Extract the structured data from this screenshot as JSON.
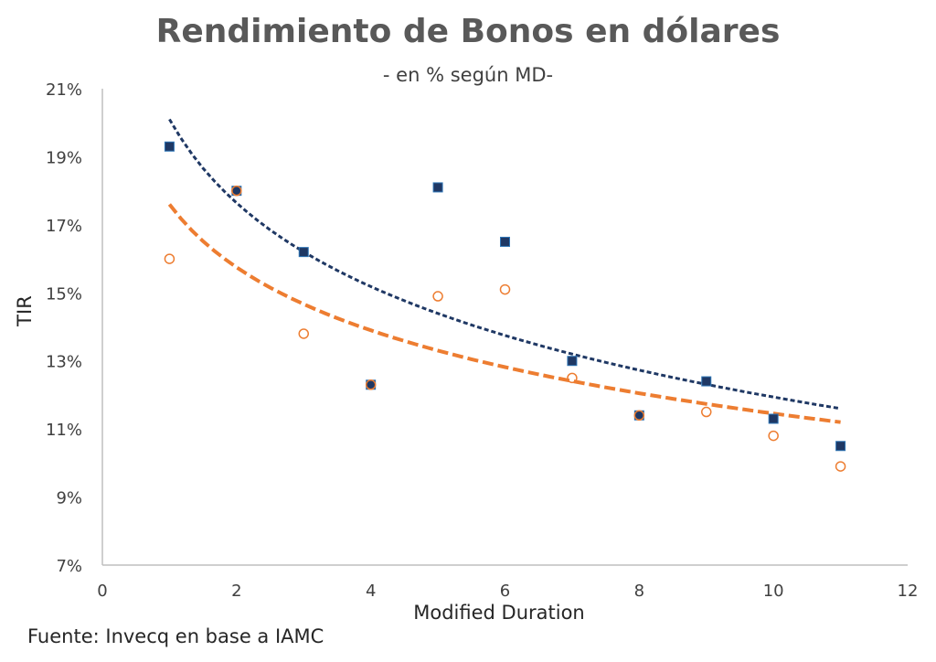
{
  "chart_data": {
    "type": "scatter",
    "title": "Rendimiento de Bonos en dólares",
    "subtitle": "- en % según MD-",
    "xlabel": "Modified Duration",
    "ylabel": "TIR",
    "xlim": [
      0,
      12
    ],
    "ylim": [
      7,
      21
    ],
    "x_ticks": [
      "0",
      "2",
      "4",
      "6",
      "8",
      "10",
      "12"
    ],
    "y_ticks": [
      "7%",
      "9%",
      "11%",
      "13%",
      "15%",
      "17%",
      "19%",
      "21%"
    ],
    "grid": false,
    "legend": "none",
    "series": [
      {
        "marker": "square-filled",
        "color": "#1f3864",
        "points": [
          {
            "x": 1,
            "y": 19.3
          },
          {
            "x": 2,
            "y": 18.0
          },
          {
            "x": 3,
            "y": 16.2
          },
          {
            "x": 4,
            "y": 12.3
          },
          {
            "x": 5,
            "y": 18.1
          },
          {
            "x": 6,
            "y": 16.5
          },
          {
            "x": 7,
            "y": 13.0
          },
          {
            "x": 8,
            "y": 11.4
          },
          {
            "x": 9,
            "y": 12.4
          },
          {
            "x": 10,
            "y": 11.3
          },
          {
            "x": 11,
            "y": 10.5
          }
        ],
        "trendline": {
          "type": "logarithmic",
          "x_start": 1,
          "x_end": 11,
          "y_start": 20.1,
          "y_end": 11.6,
          "style": "dotted",
          "color": "#1f3864"
        }
      },
      {
        "marker": "circle-open",
        "color": "#ed7d31",
        "points": [
          {
            "x": 1,
            "y": 16.0
          },
          {
            "x": 2,
            "y": 18.0
          },
          {
            "x": 3,
            "y": 13.8
          },
          {
            "x": 4,
            "y": 12.3
          },
          {
            "x": 5,
            "y": 14.9
          },
          {
            "x": 6,
            "y": 15.1
          },
          {
            "x": 7,
            "y": 12.5
          },
          {
            "x": 8,
            "y": 11.4
          },
          {
            "x": 9,
            "y": 11.5
          },
          {
            "x": 10,
            "y": 10.8
          },
          {
            "x": 11,
            "y": 9.9
          }
        ],
        "trendline": {
          "type": "logarithmic",
          "x_start": 1,
          "x_end": 11,
          "y_start": 17.6,
          "y_end": 11.2,
          "style": "dashed",
          "color": "#ed7d31"
        }
      }
    ]
  },
  "footer": {
    "source": "Fuente: Invecq en base a IAMC"
  }
}
